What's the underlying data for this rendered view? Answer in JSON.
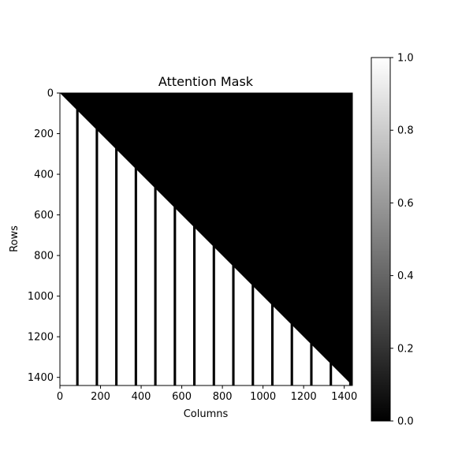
{
  "chart_data": {
    "type": "heatmap",
    "title": "Attention Mask",
    "xlabel": "Columns",
    "ylabel": "Rows",
    "size": 1440,
    "xlim": [
      0,
      1440
    ],
    "ylim": [
      1440,
      0
    ],
    "xticks": [
      0,
      200,
      400,
      600,
      800,
      1000,
      1200,
      1400
    ],
    "yticks": [
      0,
      200,
      400,
      600,
      800,
      1000,
      1200,
      1400
    ],
    "mask_rule": "causal lower triangle is 1 except masked columns (0) below their start row",
    "masked_columns": [
      {
        "x0": 80,
        "x1": 92,
        "y_start": 80
      },
      {
        "x0": 176,
        "x1": 188,
        "y_start": 176
      },
      {
        "x0": 272,
        "x1": 284,
        "y_start": 272
      },
      {
        "x0": 368,
        "x1": 380,
        "y_start": 368
      },
      {
        "x0": 464,
        "x1": 476,
        "y_start": 464
      },
      {
        "x0": 560,
        "x1": 572,
        "y_start": 560
      },
      {
        "x0": 656,
        "x1": 668,
        "y_start": 656
      },
      {
        "x0": 752,
        "x1": 764,
        "y_start": 752
      },
      {
        "x0": 848,
        "x1": 860,
        "y_start": 848
      },
      {
        "x0": 944,
        "x1": 956,
        "y_start": 944
      },
      {
        "x0": 1040,
        "x1": 1052,
        "y_start": 1040
      },
      {
        "x0": 1136,
        "x1": 1148,
        "y_start": 1136
      },
      {
        "x0": 1232,
        "x1": 1244,
        "y_start": 1232
      },
      {
        "x0": 1328,
        "x1": 1340,
        "y_start": 1328
      },
      {
        "x0": 1424,
        "x1": 1436,
        "y_start": 1424
      }
    ],
    "colorbar": {
      "cmap": "gray",
      "vmin": 0.0,
      "vmax": 1.0,
      "ticks": [
        "0.0",
        "0.2",
        "0.4",
        "0.6",
        "0.8",
        "1.0"
      ]
    }
  }
}
